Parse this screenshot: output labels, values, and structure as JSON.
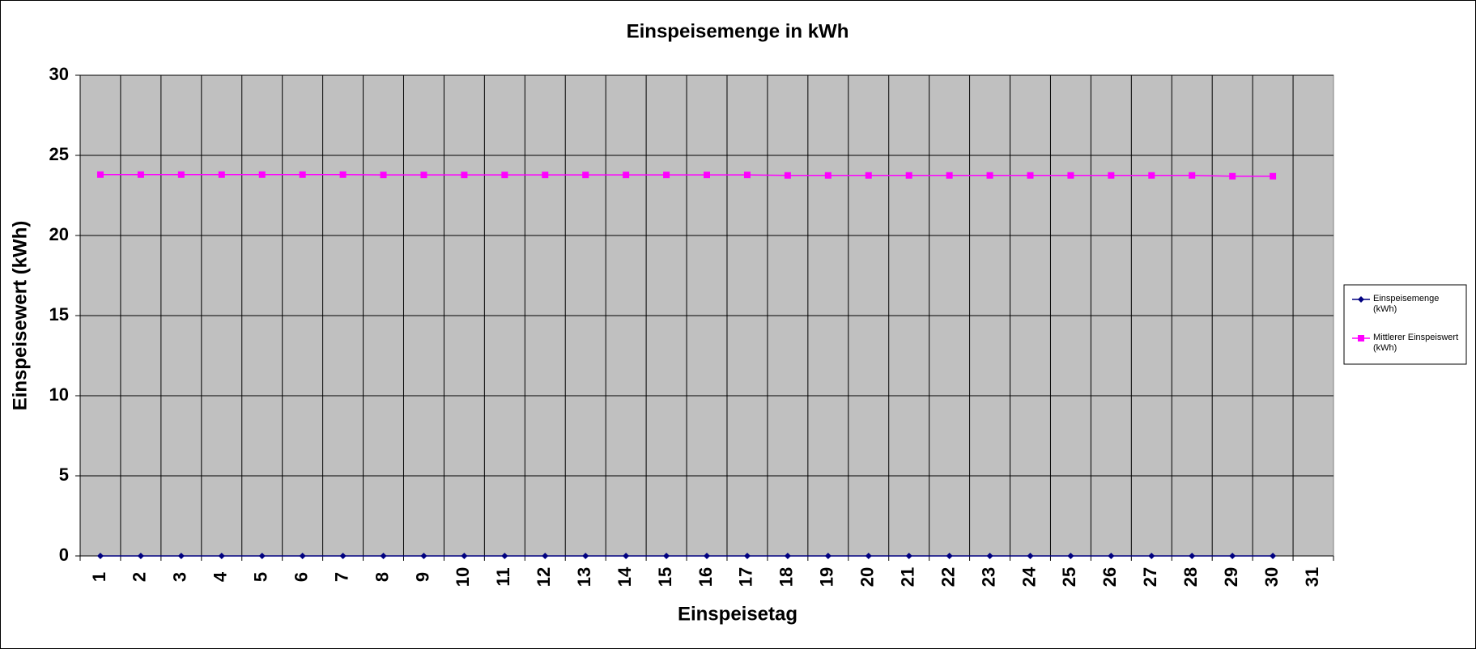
{
  "chart_data": {
    "type": "line",
    "title": "Einspeisemenge in kWh",
    "x_label": "Einspeisetag",
    "y_label": "Einspeisewert  (kWh)",
    "categories": [
      "1",
      "2",
      "3",
      "4",
      "5",
      "6",
      "7",
      "8",
      "9",
      "10",
      "11",
      "12",
      "13",
      "14",
      "15",
      "16",
      "17",
      "18",
      "19",
      "20",
      "21",
      "22",
      "23",
      "24",
      "25",
      "26",
      "27",
      "28",
      "29",
      "30",
      "31"
    ],
    "series": [
      {
        "name": "Einspeisemenge (kWh)",
        "color": "#000080",
        "marker": "diamond",
        "values": [
          0,
          0,
          0,
          0,
          0,
          0,
          0,
          0,
          0,
          0,
          0,
          0,
          0,
          0,
          0,
          0,
          0,
          0,
          0,
          0,
          0,
          0,
          0,
          0,
          0,
          0,
          0,
          0,
          0,
          0,
          null
        ]
      },
      {
        "name": "Mittlerer Einspeiswert (kWh)",
        "color": "#ff00ff",
        "marker": "square",
        "values": [
          23.8,
          23.8,
          23.8,
          23.8,
          23.8,
          23.8,
          23.8,
          23.78,
          23.78,
          23.78,
          23.78,
          23.78,
          23.78,
          23.78,
          23.78,
          23.78,
          23.78,
          23.75,
          23.75,
          23.75,
          23.75,
          23.75,
          23.75,
          23.75,
          23.75,
          23.75,
          23.75,
          23.75,
          23.7,
          23.7,
          null
        ]
      }
    ],
    "ylim": [
      0,
      30
    ],
    "yticks": [
      0,
      5,
      10,
      15,
      20,
      25,
      30
    ],
    "grid": true,
    "legend": "right",
    "plot_background": "#c0c0c0"
  }
}
